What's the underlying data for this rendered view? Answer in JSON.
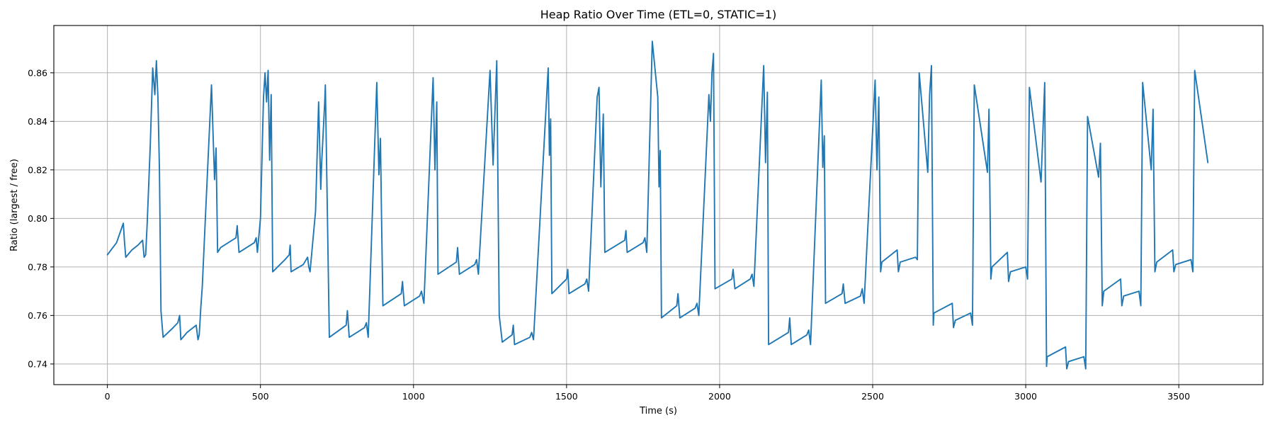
{
  "chart_data": {
    "type": "line",
    "title": "Heap Ratio Over Time (ETL=0, STATIC=1)",
    "xlabel": "Time (s)",
    "ylabel": "Ratio (largest / free)",
    "xlim": [
      -175,
      3775
    ],
    "ylim": [
      0.7315,
      0.8795
    ],
    "xticks": [
      0,
      500,
      1000,
      1500,
      2000,
      2500,
      3000,
      3500
    ],
    "xtick_labels": [
      "0",
      "500",
      "1000",
      "1500",
      "2000",
      "2500",
      "3000",
      "3500"
    ],
    "yticks": [
      0.74,
      0.76,
      0.78,
      0.8,
      0.82,
      0.84,
      0.86
    ],
    "ytick_labels": [
      "0.74",
      "0.76",
      "0.78",
      "0.80",
      "0.82",
      "0.84",
      "0.86"
    ],
    "grid": true,
    "series": [
      {
        "color": "#1f77b4",
        "x": [
          0,
          30,
          52,
          56,
          60,
          80,
          100,
          115,
          120,
          125,
          130,
          140,
          148,
          155,
          160,
          165,
          170,
          175,
          182,
          190,
          215,
          230,
          236,
          240,
          260,
          290,
          296,
          300,
          305,
          310,
          320,
          340,
          350,
          355,
          360,
          370,
          420,
          424,
          430,
          480,
          486,
          490,
          500,
          510,
          515,
          520,
          525,
          530,
          535,
          540,
          580,
          594,
          597,
          600,
          640,
          654,
          658,
          662,
          680,
          690,
          697,
          700,
          710,
          712,
          725,
          780,
          784,
          790,
          840,
          846,
          852,
          880,
          887,
          892,
          895,
          900,
          960,
          964,
          970,
          1020,
          1026,
          1034,
          1064,
          1070,
          1076,
          1080,
          1140,
          1144,
          1150,
          1200,
          1206,
          1212,
          1250,
          1260,
          1272,
          1280,
          1290,
          1322,
          1326,
          1330,
          1380,
          1386,
          1392,
          1440,
          1444,
          1448,
          1452,
          1500,
          1504,
          1508,
          1560,
          1566,
          1572,
          1600,
          1606,
          1612,
          1620,
          1625,
          1690,
          1694,
          1698,
          1750,
          1756,
          1762,
          1780,
          1798,
          1802,
          1806,
          1810,
          1860,
          1864,
          1870,
          1920,
          1926,
          1932,
          1965,
          1970,
          1975,
          1980,
          1985,
          2040,
          2044,
          2050,
          2100,
          2106,
          2112,
          2144,
          2150,
          2156,
          2160,
          2225,
          2229,
          2234,
          2285,
          2291,
          2297,
          2332,
          2337,
          2342,
          2346,
          2400,
          2404,
          2410,
          2460,
          2466,
          2472,
          2508,
          2514,
          2520,
          2526,
          2530,
          2580,
          2584,
          2590,
          2640,
          2646,
          2652,
          2680,
          2686,
          2692,
          2698,
          2700,
          2760,
          2764,
          2770,
          2820,
          2826,
          2832,
          2875,
          2880,
          2886,
          2890,
          2940,
          2944,
          2950,
          3000,
          3006,
          3012,
          3050,
          3056,
          3062,
          3068,
          3070,
          3130,
          3134,
          3140,
          3190,
          3196,
          3202,
          3238,
          3244,
          3250,
          3255,
          3310,
          3314,
          3320,
          3370,
          3376,
          3382,
          3410,
          3416,
          3422,
          3428,
          3480,
          3484,
          3490,
          3540,
          3546,
          3552,
          3595
        ],
        "y": [
          0.785,
          0.79,
          0.798,
          0.79,
          0.784,
          0.787,
          0.789,
          0.791,
          0.784,
          0.785,
          0.798,
          0.83,
          0.862,
          0.851,
          0.865,
          0.85,
          0.82,
          0.762,
          0.751,
          0.752,
          0.755,
          0.757,
          0.76,
          0.75,
          0.753,
          0.756,
          0.75,
          0.752,
          0.763,
          0.772,
          0.8,
          0.855,
          0.816,
          0.829,
          0.786,
          0.788,
          0.792,
          0.797,
          0.786,
          0.79,
          0.792,
          0.786,
          0.8,
          0.85,
          0.86,
          0.848,
          0.861,
          0.824,
          0.851,
          0.778,
          0.783,
          0.785,
          0.789,
          0.778,
          0.781,
          0.784,
          0.78,
          0.778,
          0.803,
          0.848,
          0.812,
          0.823,
          0.848,
          0.855,
          0.751,
          0.756,
          0.762,
          0.751,
          0.755,
          0.757,
          0.751,
          0.856,
          0.818,
          0.833,
          0.805,
          0.764,
          0.769,
          0.774,
          0.764,
          0.768,
          0.77,
          0.765,
          0.858,
          0.82,
          0.848,
          0.777,
          0.782,
          0.788,
          0.777,
          0.781,
          0.783,
          0.777,
          0.861,
          0.822,
          0.865,
          0.76,
          0.749,
          0.752,
          0.756,
          0.748,
          0.751,
          0.753,
          0.75,
          0.862,
          0.826,
          0.841,
          0.769,
          0.775,
          0.779,
          0.769,
          0.773,
          0.775,
          0.77,
          0.85,
          0.854,
          0.813,
          0.843,
          0.786,
          0.791,
          0.795,
          0.786,
          0.79,
          0.792,
          0.786,
          0.873,
          0.85,
          0.813,
          0.828,
          0.759,
          0.764,
          0.769,
          0.759,
          0.763,
          0.765,
          0.76,
          0.851,
          0.84,
          0.86,
          0.868,
          0.771,
          0.775,
          0.779,
          0.771,
          0.775,
          0.777,
          0.772,
          0.863,
          0.823,
          0.852,
          0.748,
          0.753,
          0.759,
          0.748,
          0.752,
          0.754,
          0.748,
          0.857,
          0.821,
          0.834,
          0.765,
          0.769,
          0.773,
          0.765,
          0.768,
          0.771,
          0.765,
          0.857,
          0.82,
          0.85,
          0.778,
          0.782,
          0.787,
          0.778,
          0.782,
          0.784,
          0.783,
          0.86,
          0.819,
          0.851,
          0.863,
          0.756,
          0.761,
          0.765,
          0.755,
          0.758,
          0.761,
          0.756,
          0.855,
          0.819,
          0.845,
          0.775,
          0.78,
          0.786,
          0.774,
          0.778,
          0.78,
          0.775,
          0.854,
          0.815,
          0.835,
          0.856,
          0.739,
          0.743,
          0.747,
          0.738,
          0.741,
          0.743,
          0.738,
          0.842,
          0.817,
          0.831,
          0.764,
          0.77,
          0.775,
          0.764,
          0.768,
          0.77,
          0.764,
          0.856,
          0.82,
          0.845,
          0.778,
          0.782,
          0.787,
          0.778,
          0.781,
          0.783,
          0.778,
          0.861,
          0.823
        ]
      }
    ]
  }
}
